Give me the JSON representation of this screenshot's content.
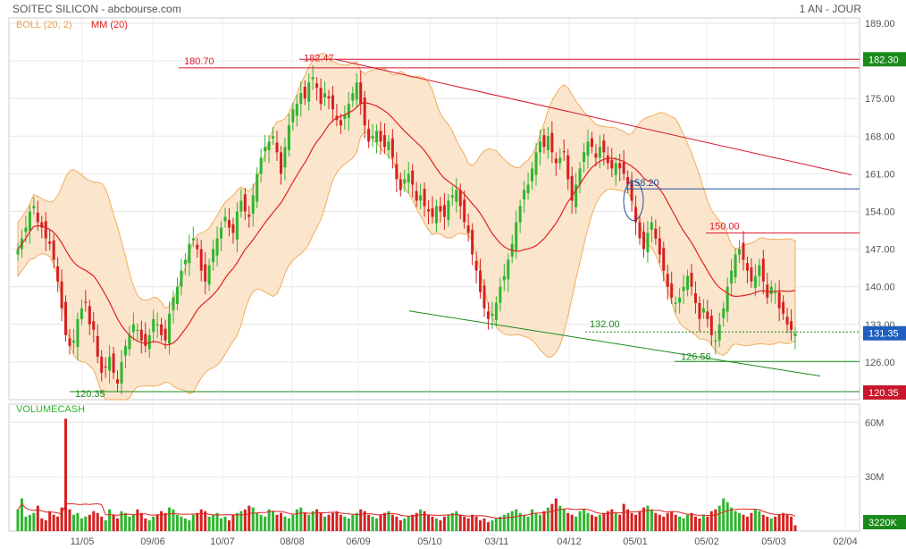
{
  "header": {
    "title": "SOITEC SILICON - abcbourse.com",
    "period": "1 AN - JOUR"
  },
  "legend": {
    "boll": "BOLL (20, 2)",
    "mm": "MM (20)",
    "volume": "VOLUMECASH"
  },
  "colors": {
    "boll_band": "#fbe3c8",
    "boll_edge": "#f2a54a",
    "mm": "#e02020",
    "up": "#2fb52f",
    "down": "#d62020",
    "resistance": "#d8172b",
    "support": "#1a8a1a",
    "hline_blue": "#1f4e9a",
    "axis_text": "#555555"
  },
  "chart_data": [
    {
      "type": "candlestick",
      "title": "SOITEC SILICON",
      "x_tick_labels": [
        "11/05",
        "09/06",
        "10/07",
        "08/08",
        "06/09",
        "05/10",
        "03/11",
        "04/12",
        "05/01",
        "05/02",
        "05/03",
        "02/04"
      ],
      "y_tick_labels": [
        "189.00",
        "182.00",
        "175.00",
        "168.00",
        "161.00",
        "154.00",
        "147.00",
        "140.00",
        "133.00",
        "126.00"
      ],
      "ylim": [
        119,
        190
      ],
      "grid": true,
      "last_price": "131.35",
      "right_badges": [
        "182.30",
        "131.35",
        "120.35"
      ],
      "annotations": {
        "levels": [
          "180.70",
          "182.47",
          "158.20",
          "150.00",
          "132.00",
          "126.56",
          "120.35"
        ]
      },
      "closes": [
        147,
        149,
        151,
        154,
        155,
        152,
        151,
        149,
        148,
        145,
        141,
        136,
        131,
        129,
        130,
        134,
        136,
        137,
        133,
        132,
        127,
        124,
        125,
        127,
        124,
        122,
        126,
        129,
        131,
        133,
        132,
        130,
        129,
        131,
        134,
        133,
        131,
        130,
        135,
        138,
        140,
        143,
        145,
        148,
        149,
        147,
        143,
        141,
        144,
        147,
        149,
        151,
        153,
        151,
        150,
        154,
        156,
        154,
        153,
        157,
        161,
        164,
        166,
        167,
        168,
        165,
        161,
        166,
        170,
        173,
        174,
        176,
        175,
        178,
        179,
        177,
        174,
        176,
        175,
        173,
        171,
        170,
        172,
        174,
        176,
        178,
        174,
        170,
        167,
        168,
        169,
        167,
        166,
        167,
        164,
        160,
        158,
        160,
        161,
        159,
        156,
        157,
        155,
        154,
        153,
        155,
        154,
        153,
        156,
        157,
        158,
        155,
        152,
        150,
        146,
        143,
        139,
        136,
        134,
        135,
        137,
        140,
        142,
        145,
        148,
        152,
        155,
        158,
        159,
        162,
        165,
        167,
        166,
        168,
        165,
        163,
        164,
        165,
        160,
        156,
        159,
        162,
        165,
        167,
        166,
        164,
        166,
        165,
        163,
        162,
        163,
        162,
        161,
        159,
        156,
        152,
        149,
        147,
        150,
        152,
        149,
        146,
        143,
        140,
        138,
        137,
        138,
        140,
        142,
        140,
        137,
        134,
        136,
        134,
        131,
        130,
        133,
        136,
        140,
        143,
        146,
        147,
        145,
        143,
        141,
        142,
        144,
        141,
        138,
        140,
        139,
        136,
        135,
        133,
        132,
        131.35
      ]
    },
    {
      "type": "bar",
      "title": "VOLUMECASH",
      "y_tick_labels": [
        "60M",
        "30M"
      ],
      "last_volume": "3220K",
      "volumes": [
        12,
        18,
        8,
        9,
        10,
        14,
        7,
        6,
        11,
        9,
        8,
        13,
        62,
        12,
        9,
        10,
        7,
        8,
        9,
        11,
        10,
        8,
        6,
        12,
        9,
        7,
        11,
        10,
        8,
        9,
        12,
        10,
        7,
        6,
        8,
        9,
        11,
        10,
        13,
        12,
        9,
        8,
        7,
        6,
        9,
        10,
        12,
        11,
        8,
        9,
        10,
        7,
        8,
        6,
        9,
        10,
        11,
        12,
        14,
        13,
        10,
        9,
        8,
        12,
        11,
        9,
        10,
        8,
        7,
        9,
        12,
        13,
        10,
        9,
        11,
        12,
        10,
        8,
        9,
        10,
        11,
        9,
        8,
        7,
        9,
        10,
        12,
        11,
        9,
        8,
        7,
        9,
        10,
        11,
        9,
        8,
        6,
        7,
        8,
        9,
        10,
        12,
        11,
        9,
        8,
        7,
        6,
        8,
        9,
        10,
        11,
        9,
        8,
        7,
        9,
        8,
        6,
        7,
        5,
        6,
        7,
        8,
        9,
        10,
        11,
        12,
        10,
        9,
        8,
        12,
        10,
        9,
        11,
        13,
        15,
        18,
        14,
        12,
        10,
        9,
        8,
        11,
        12,
        10,
        9,
        8,
        9,
        10,
        11,
        12,
        10,
        9,
        15,
        12,
        10,
        9,
        11,
        13,
        14,
        12,
        10,
        9,
        8,
        10,
        11,
        9,
        8,
        7,
        9,
        10,
        8,
        7,
        9,
        8,
        11,
        12,
        14,
        18,
        16,
        13,
        11,
        10,
        9,
        8,
        10,
        12,
        11,
        9,
        8,
        7,
        8,
        9,
        10,
        9,
        8,
        3.22
      ]
    }
  ]
}
